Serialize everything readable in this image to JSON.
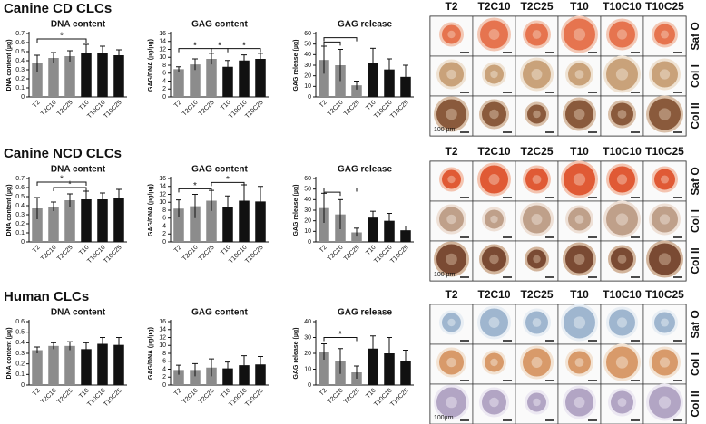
{
  "sections": [
    {
      "title": "Canine CD CLCs"
    },
    {
      "title": "Canine NCD CLCs"
    },
    {
      "title": "Human CLCs"
    }
  ],
  "chart_data": [
    {
      "type": "bar",
      "title": "DNA content",
      "y_label": "DNA content (µg)",
      "categories": [
        "T2",
        "T2C10",
        "T2C25",
        "T10",
        "T10C10",
        "T10C25"
      ],
      "colors": [
        "#8c8c8c",
        "#8c8c8c",
        "#8c8c8c",
        "#111111",
        "#111111",
        "#111111"
      ],
      "values": [
        0.37,
        0.43,
        0.45,
        0.48,
        0.48,
        0.46
      ],
      "errors": [
        0.09,
        0.06,
        0.06,
        0.1,
        0.08,
        0.06
      ],
      "ylim": [
        0,
        0.7
      ],
      "yticks": [
        0,
        0.1,
        0.2,
        0.3,
        0.4,
        0.5,
        0.6,
        0.7
      ],
      "brackets": [
        {
          "from": "T2",
          "to": "T10",
          "level": 0.64,
          "label": "*"
        }
      ]
    },
    {
      "type": "bar",
      "title": "GAG content",
      "y_label": "GAG/DNA (µg/µg)",
      "categories": [
        "T2",
        "T2C10",
        "T2C25",
        "T10",
        "T10C10",
        "T10C25"
      ],
      "colors": [
        "#8c8c8c",
        "#8c8c8c",
        "#8c8c8c",
        "#111111",
        "#111111",
        "#111111"
      ],
      "values": [
        7,
        8.2,
        9.6,
        7.6,
        9.2,
        9.6
      ],
      "errors": [
        0.6,
        1.4,
        1.4,
        1.6,
        1.4,
        1.4
      ],
      "ylim": [
        0,
        16
      ],
      "yticks": [
        0,
        2,
        4,
        6,
        8,
        10,
        12,
        14,
        16
      ],
      "brackets": [
        {
          "from": "T2",
          "to": "T2C25",
          "level": 12.2,
          "label": "*"
        },
        {
          "from": "T2C25",
          "to": "T10",
          "level": 12.2,
          "label": "*"
        },
        {
          "from": "T10",
          "to": "T10C25",
          "level": 12.2,
          "label": "*"
        }
      ]
    },
    {
      "type": "bar",
      "title": "GAG release",
      "y_label": "GAG release (µg)",
      "categories": [
        "T2",
        "T2C10",
        "T2C25",
        "T10",
        "T10C10",
        "T10C25"
      ],
      "colors": [
        "#8c8c8c",
        "#8c8c8c",
        "#8c8c8c",
        "#111111",
        "#111111",
        "#111111"
      ],
      "values": [
        35,
        30,
        11,
        32,
        26,
        19
      ],
      "errors": [
        13,
        15,
        4,
        14,
        10,
        11
      ],
      "ylim": [
        0,
        60
      ],
      "yticks": [
        0,
        10,
        20,
        30,
        40,
        50,
        60
      ],
      "brackets": [
        {
          "from": "T2",
          "to": "T2C10",
          "level": 52
        },
        {
          "from": "T2",
          "to": "T2C25",
          "level": 56
        }
      ]
    },
    {
      "type": "bar",
      "title": "DNA content",
      "y_label": "DNA content (µg)",
      "categories": [
        "T2",
        "T2C10",
        "T2C25",
        "T10",
        "T10C10",
        "T10C25"
      ],
      "colors": [
        "#8c8c8c",
        "#8c8c8c",
        "#8c8c8c",
        "#111111",
        "#111111",
        "#111111"
      ],
      "values": [
        0.37,
        0.39,
        0.46,
        0.47,
        0.47,
        0.48
      ],
      "errors": [
        0.12,
        0.05,
        0.07,
        0.09,
        0.07,
        0.1
      ],
      "ylim": [
        0,
        0.7
      ],
      "yticks": [
        0,
        0.1,
        0.2,
        0.3,
        0.4,
        0.5,
        0.6,
        0.7
      ],
      "brackets": [
        {
          "from": "T2",
          "to": "T10",
          "level": 0.66,
          "label": "*"
        },
        {
          "from": "T2C10",
          "to": "T10",
          "level": 0.6,
          "label": "*"
        }
      ]
    },
    {
      "type": "bar",
      "title": "GAG content",
      "y_label": "GAG/DNA (µg/µg)",
      "categories": [
        "T2",
        "T2C10",
        "T2C25",
        "T10",
        "T10C10",
        "T10C25"
      ],
      "colors": [
        "#8c8c8c",
        "#8c8c8c",
        "#8c8c8c",
        "#111111",
        "#111111",
        "#111111"
      ],
      "values": [
        8.4,
        9,
        10.4,
        8.8,
        10.4,
        10.2
      ],
      "errors": [
        2.2,
        3,
        2.6,
        2.8,
        4,
        3.8
      ],
      "ylim": [
        0,
        16
      ],
      "yticks": [
        0,
        2,
        4,
        6,
        8,
        10,
        12,
        14,
        16
      ],
      "brackets": [
        {
          "from": "T2",
          "to": "T2C25",
          "level": 13.4,
          "label": "*"
        },
        {
          "from": "T2C25",
          "to": "T10C10",
          "level": 15,
          "label": "*"
        }
      ]
    },
    {
      "type": "bar",
      "title": "GAG release",
      "y_label": "GAG release (µg)",
      "categories": [
        "T2",
        "T2C10",
        "T2C25",
        "T10",
        "T10C10",
        "T10C25"
      ],
      "colors": [
        "#8c8c8c",
        "#8c8c8c",
        "#8c8c8c",
        "#111111",
        "#111111",
        "#111111"
      ],
      "values": [
        32,
        26,
        9,
        23,
        20,
        11
      ],
      "errors": [
        14,
        14,
        4,
        6,
        7,
        4
      ],
      "ylim": [
        0,
        60
      ],
      "yticks": [
        0,
        10,
        20,
        30,
        40,
        50,
        60
      ],
      "brackets": [
        {
          "from": "T2",
          "to": "T2C10",
          "level": 47
        },
        {
          "from": "T2",
          "to": "T2C25",
          "level": 51
        }
      ]
    },
    {
      "type": "bar",
      "title": "DNA content",
      "y_label": "DNA content (µg)",
      "categories": [
        "T2",
        "T2C10",
        "T2C25",
        "T10",
        "T10C10",
        "T10C25"
      ],
      "colors": [
        "#8c8c8c",
        "#8c8c8c",
        "#8c8c8c",
        "#111111",
        "#111111",
        "#111111"
      ],
      "values": [
        0.33,
        0.37,
        0.37,
        0.34,
        0.39,
        0.38
      ],
      "errors": [
        0.03,
        0.03,
        0.04,
        0.06,
        0.06,
        0.07
      ],
      "ylim": [
        0,
        0.6
      ],
      "yticks": [
        0,
        0.1,
        0.2,
        0.3,
        0.4,
        0.5,
        0.6
      ],
      "brackets": []
    },
    {
      "type": "bar",
      "title": "GAG content",
      "y_label": "GAG/DNA (µg/µg)",
      "categories": [
        "T2",
        "T2C10",
        "T2C25",
        "T10",
        "T10C10",
        "T10C25"
      ],
      "colors": [
        "#8c8c8c",
        "#8c8c8c",
        "#8c8c8c",
        "#111111",
        "#111111",
        "#111111"
      ],
      "values": [
        3.8,
        3.8,
        4.4,
        4.2,
        5,
        5.2
      ],
      "errors": [
        1.2,
        1.6,
        2.2,
        1.6,
        2.4,
        2
      ],
      "ylim": [
        0,
        16
      ],
      "yticks": [
        0,
        2,
        4,
        6,
        8,
        10,
        12,
        14,
        16
      ],
      "brackets": []
    },
    {
      "type": "bar",
      "title": "GAG release",
      "y_label": "GAG release (µg)",
      "categories": [
        "T2",
        "T2C10",
        "T2C25",
        "T10",
        "T10C10",
        "T10C25"
      ],
      "colors": [
        "#8c8c8c",
        "#8c8c8c",
        "#8c8c8c",
        "#111111",
        "#111111",
        "#111111"
      ],
      "values": [
        21,
        15,
        8,
        23,
        20,
        15
      ],
      "errors": [
        5,
        8,
        4,
        8,
        10,
        7
      ],
      "ylim": [
        0,
        40
      ],
      "yticks": [
        0,
        10,
        20,
        30,
        40
      ],
      "brackets": [
        {
          "from": "T2",
          "to": "T2C25",
          "level": 30,
          "label": "*"
        }
      ]
    }
  ],
  "image_panels": [
    {
      "columns": [
        "T2",
        "T2C10",
        "T2C25",
        "T10",
        "T10C10",
        "T10C25"
      ],
      "rows": [
        "Saf O",
        "Col I",
        "Col II"
      ],
      "scale_bar": "100 µm"
    },
    {
      "columns": [
        "T2",
        "T2C10",
        "T2C25",
        "T10",
        "T10C10",
        "T10C25"
      ],
      "rows": [
        "Saf O",
        "Col I",
        "Col II"
      ],
      "scale_bar": "100 µm"
    },
    {
      "columns": [
        "T2",
        "T2C10",
        "T2C25",
        "T10",
        "T10C10",
        "T10C25"
      ],
      "rows": [
        "Saf O",
        "Col I",
        "Col II"
      ],
      "scale_bar": "100µm"
    }
  ]
}
